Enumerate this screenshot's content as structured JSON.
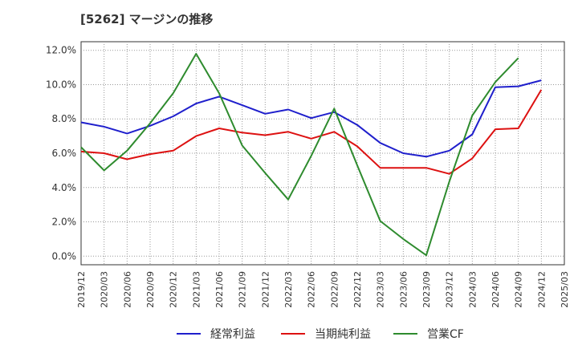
{
  "chart_data": {
    "type": "line",
    "title": "[5262]  マージンの推移",
    "x": [
      "2019/12",
      "2020/03",
      "2020/06",
      "2020/09",
      "2020/12",
      "2021/03",
      "2021/06",
      "2021/09",
      "2021/12",
      "2022/03",
      "2022/06",
      "2022/09",
      "2022/12",
      "2023/03",
      "2023/06",
      "2023/09",
      "2023/12",
      "2024/03",
      "2024/06",
      "2024/09",
      "2024/12",
      "2025/03"
    ],
    "yticks": [
      "0.0%",
      "2.0%",
      "4.0%",
      "6.0%",
      "8.0%",
      "10.0%",
      "12.0%"
    ],
    "ylim": [
      -0.5,
      12.5
    ],
    "grid": true,
    "legend_position": "bottom",
    "series": [
      {
        "name": "経常利益",
        "color": "#1f1fcc",
        "values": [
          7.8,
          7.55,
          7.15,
          7.6,
          8.15,
          8.9,
          9.3,
          8.8,
          8.3,
          8.55,
          8.05,
          8.4,
          7.65,
          6.6,
          6.0,
          5.8,
          6.15,
          7.1,
          9.85,
          9.9,
          10.25,
          null
        ]
      },
      {
        "name": "当期純利益",
        "color": "#dd1111",
        "values": [
          6.1,
          6.0,
          5.65,
          5.95,
          6.15,
          7.0,
          7.45,
          7.2,
          7.05,
          7.25,
          6.85,
          7.25,
          6.4,
          5.15,
          5.15,
          5.15,
          4.8,
          5.7,
          7.4,
          7.45,
          9.7,
          null
        ]
      },
      {
        "name": "営業CF",
        "color": "#2e8b2e",
        "values": [
          6.35,
          5.0,
          6.15,
          7.75,
          9.5,
          11.8,
          9.5,
          6.45,
          4.85,
          3.3,
          5.85,
          8.6,
          5.3,
          2.05,
          1.0,
          0.05,
          4.35,
          8.2,
          10.15,
          11.55,
          null,
          null
        ]
      }
    ]
  }
}
